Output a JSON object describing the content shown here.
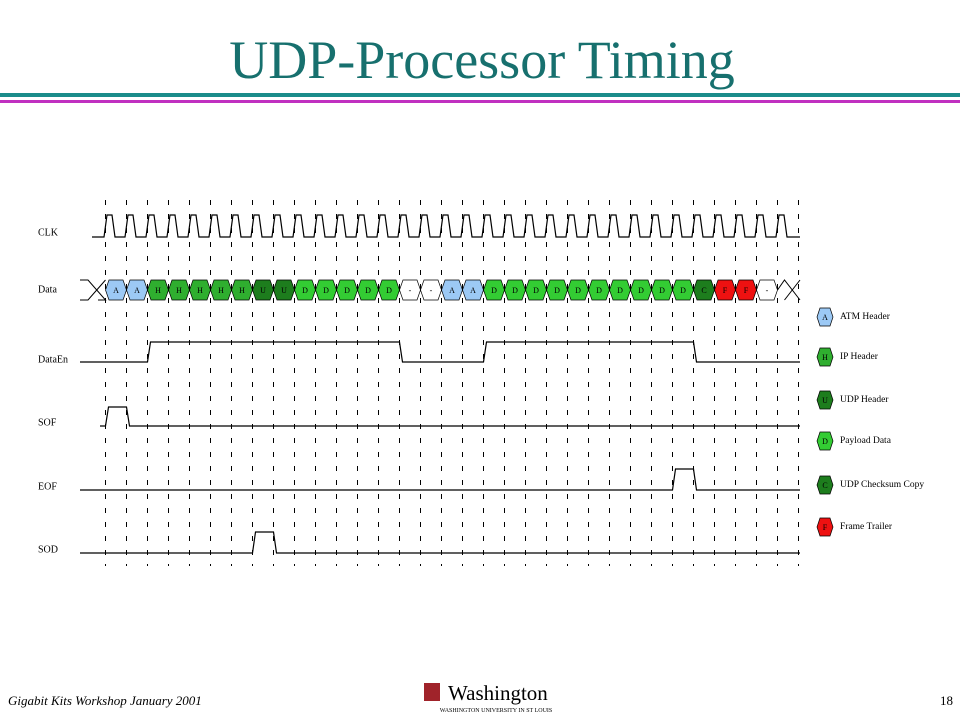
{
  "title": "UDP-Processor Timing",
  "signals": [
    "CLK",
    "Data",
    "DataEn",
    "SOF",
    "EOF",
    "SOD"
  ],
  "cells": [
    "A",
    "A",
    "H",
    "H",
    "H",
    "H",
    "H",
    "U",
    "U",
    "D",
    "D",
    "D",
    "D",
    "D",
    "-",
    "-",
    "A",
    "A",
    "D",
    "D",
    "D",
    "D",
    "D",
    "D",
    "D",
    "D",
    "D",
    "D",
    "C",
    "F",
    "F",
    "-"
  ],
  "legend": [
    {
      "letter": "A",
      "label": "ATM Header",
      "color": "#9cc9f5"
    },
    {
      "letter": "H",
      "label": "IP Header",
      "color": "#2fae2f"
    },
    {
      "letter": "U",
      "label": "UDP Header",
      "color": "#1d7d1d"
    },
    {
      "letter": "D",
      "label": "Payload Data",
      "color": "#33cc33"
    },
    {
      "letter": "C",
      "label": "UDP Checksum Copy",
      "color": "#1d7d1d"
    },
    {
      "letter": "F",
      "label": "Frame Trailer",
      "color": "#ee1111"
    }
  ],
  "footer": {
    "left": "Gigabit Kits Workshop January 2001",
    "brand": "Washington",
    "brand_sub": "WASHINGTON UNIVERSITY IN ST LOUIS",
    "page": "18"
  }
}
